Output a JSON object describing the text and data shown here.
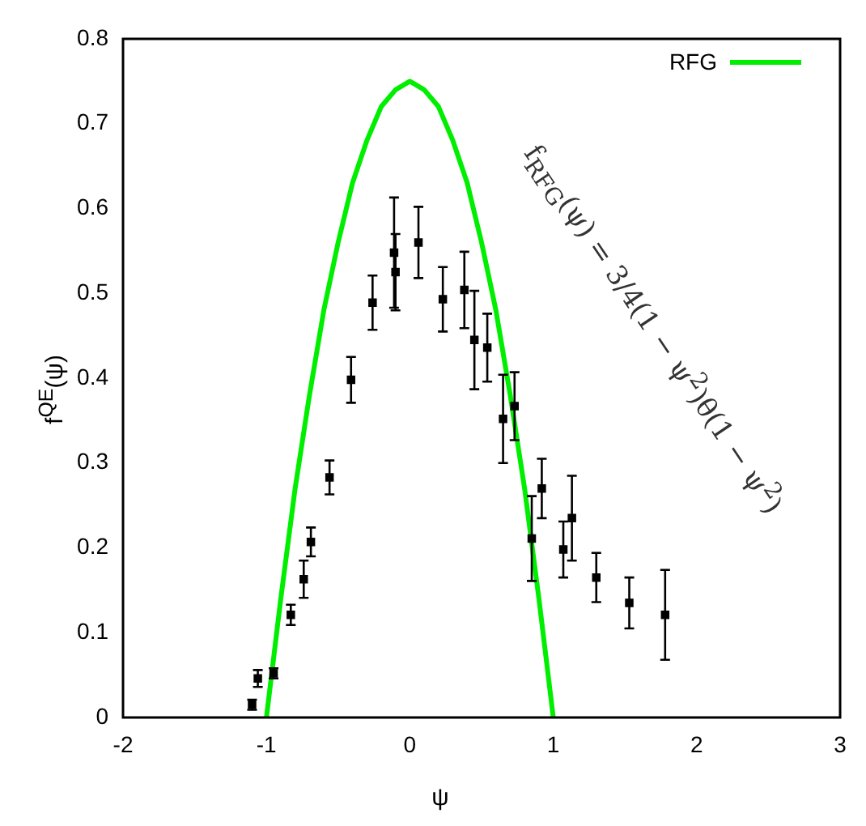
{
  "chart_data": {
    "type": "scatter",
    "xlabel": "ψ",
    "ylabel": "f$^{QE}$(ψ)",
    "xlim": [
      -2,
      3
    ],
    "xticks": [
      -2,
      -1,
      0,
      1,
      2,
      3
    ],
    "ylim": [
      0,
      0.8
    ],
    "yticks": [
      0,
      0.1,
      0.2,
      0.3,
      0.4,
      0.5,
      0.6,
      0.7,
      0.8
    ],
    "grid": false,
    "legend": "top right",
    "annotations": [
      "f$_{RFG}$(ψ) = 3/4(1 − ψ$^{2}$)θ(1 − ψ$^{2}$)"
    ],
    "series": [
      {
        "color": "#000000",
        "marker": "square",
        "x": [
          -1.1,
          -1.06,
          -0.95,
          -0.83,
          -0.74,
          -0.69,
          -0.56,
          -0.41,
          -0.26,
          -0.11,
          -0.1,
          0.06,
          0.23,
          0.38,
          0.45,
          0.54,
          0.65,
          0.73,
          0.85,
          0.92,
          1.07,
          1.13,
          1.3,
          1.53,
          1.78
        ],
        "values": [
          0.015,
          0.046,
          0.052,
          0.121,
          0.163,
          0.207,
          0.283,
          0.398,
          0.489,
          0.548,
          0.525,
          0.56,
          0.493,
          0.504,
          0.445,
          0.436,
          0.352,
          0.367,
          0.211,
          0.27,
          0.198,
          0.235,
          0.165,
          0.135,
          0.121
        ],
        "errors": [
          0.006,
          0.01,
          0.006,
          0.012,
          0.022,
          0.017,
          0.02,
          0.027,
          0.032,
          0.065,
          0.045,
          0.042,
          0.038,
          0.045,
          0.058,
          0.04,
          0.052,
          0.04,
          0.05,
          0.035,
          0.033,
          0.05,
          0.029,
          0.03,
          0.053
        ]
      },
      {
        "type": "line",
        "name": "RFG",
        "color": "#00ee00",
        "marker": "none",
        "line_style": "solid",
        "x": [
          -1,
          -0.9,
          -0.8,
          -0.7,
          -0.6,
          -0.5,
          -0.4,
          -0.3,
          -0.2,
          -0.1,
          0,
          0.1,
          0.2,
          0.3,
          0.4,
          0.5,
          0.6,
          0.7,
          0.8,
          0.9,
          1
        ],
        "values": [
          0,
          0.14,
          0.27,
          0.38,
          0.48,
          0.56,
          0.63,
          0.68,
          0.72,
          0.74,
          0.75,
          0.74,
          0.72,
          0.68,
          0.63,
          0.56,
          0.48,
          0.38,
          0.27,
          0.14,
          0
        ]
      }
    ]
  }
}
